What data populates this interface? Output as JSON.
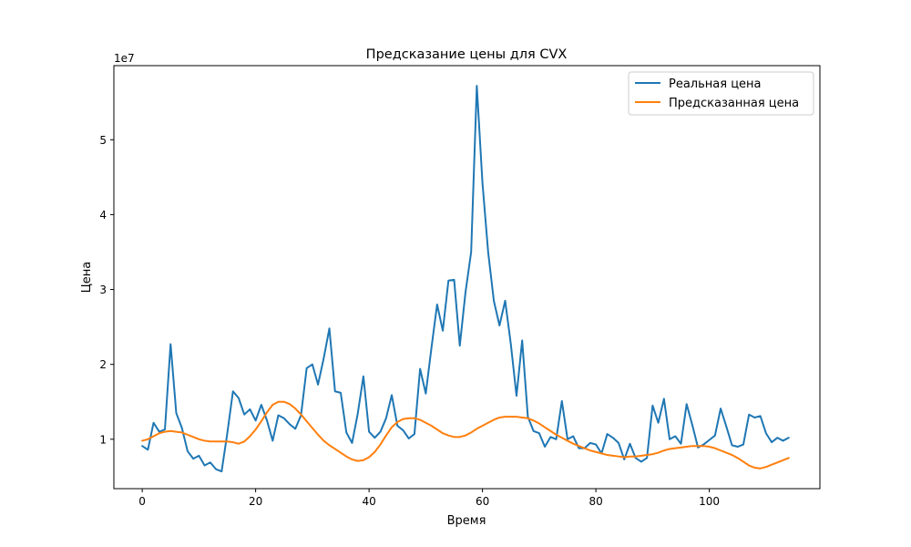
{
  "chart_data": {
    "type": "line",
    "title": "Предсказание цены для CVX",
    "xlabel": "Время",
    "ylabel": "Цена",
    "y_scale_label": "1e7",
    "y_scale": 10000000,
    "xlim": [
      -5,
      119.5
    ],
    "ylim": [
      3.4,
      59.9
    ],
    "x_ticks": [
      0,
      20,
      40,
      60,
      80,
      100
    ],
    "x_tick_labels": [
      "0",
      "20",
      "40",
      "60",
      "80",
      "100"
    ],
    "y_ticks": [
      10,
      20,
      30,
      40,
      50
    ],
    "y_tick_labels": [
      "1",
      "2",
      "3",
      "4",
      "5"
    ],
    "legend_position": "top-right",
    "series": [
      {
        "name": "Реальная цена",
        "color": "#1f77b4",
        "values": [
          9.1,
          8.6,
          12.2,
          11.0,
          11.3,
          22.7,
          13.5,
          11.5,
          8.4,
          7.4,
          7.8,
          6.5,
          6.9,
          6.0,
          5.7,
          10.8,
          16.4,
          15.5,
          13.3,
          14.0,
          12.5,
          14.6,
          12.5,
          9.8,
          13.2,
          12.8,
          12.0,
          11.4,
          13.2,
          19.5,
          20.0,
          17.3,
          20.8,
          24.8,
          16.4,
          16.2,
          10.9,
          9.5,
          13.4,
          18.4,
          11.0,
          10.2,
          11.0,
          12.8,
          15.9,
          11.8,
          11.2,
          10.1,
          10.7,
          19.4,
          16.1,
          22.2,
          28.0,
          24.5,
          31.2,
          31.3,
          22.5,
          29.6,
          35.0,
          57.2,
          44.2,
          35.0,
          28.5,
          25.2,
          28.5,
          22.7,
          15.8,
          23.2,
          13.0,
          11.1,
          10.8,
          9.0,
          10.3,
          10.0,
          15.1,
          10.0,
          10.4,
          8.8,
          8.8,
          9.5,
          9.3,
          8.1,
          10.7,
          10.2,
          9.5,
          7.3,
          9.4,
          7.5,
          7.0,
          7.5,
          14.5,
          12.2,
          15.4,
          10.0,
          10.4,
          9.4,
          14.7,
          11.9,
          8.9,
          9.3,
          9.9,
          10.5,
          14.1,
          11.7,
          9.2,
          9.0,
          9.3,
          13.3,
          12.9,
          13.1,
          10.8,
          9.6,
          10.2,
          9.8,
          10.2
        ]
      },
      {
        "name": "Предсказанная цена",
        "color": "#ff7f0e",
        "values": [
          9.8,
          10.0,
          10.4,
          10.8,
          11.0,
          11.1,
          11.0,
          10.9,
          10.6,
          10.3,
          10.0,
          9.8,
          9.7,
          9.7,
          9.7,
          9.7,
          9.6,
          9.4,
          9.7,
          10.4,
          11.3,
          12.4,
          13.6,
          14.6,
          15.0,
          15.0,
          14.7,
          14.1,
          13.3,
          12.4,
          11.5,
          10.6,
          9.8,
          9.2,
          8.7,
          8.2,
          7.7,
          7.3,
          7.1,
          7.2,
          7.6,
          8.3,
          9.3,
          10.5,
          11.6,
          12.3,
          12.7,
          12.8,
          12.8,
          12.6,
          12.2,
          11.8,
          11.3,
          10.8,
          10.5,
          10.3,
          10.3,
          10.5,
          10.9,
          11.4,
          11.8,
          12.2,
          12.6,
          12.9,
          13.0,
          13.0,
          13.0,
          12.9,
          12.8,
          12.5,
          12.1,
          11.6,
          11.1,
          10.6,
          10.2,
          9.8,
          9.4,
          9.1,
          8.8,
          8.5,
          8.3,
          8.1,
          7.9,
          7.8,
          7.7,
          7.6,
          7.7,
          7.7,
          7.8,
          7.9,
          8.0,
          8.2,
          8.5,
          8.7,
          8.8,
          8.9,
          9.0,
          9.1,
          9.1,
          9.1,
          9.0,
          8.8,
          8.5,
          8.2,
          7.9,
          7.5,
          7.0,
          6.5,
          6.2,
          6.1,
          6.3,
          6.6,
          6.9,
          7.2,
          7.5
        ]
      }
    ]
  }
}
